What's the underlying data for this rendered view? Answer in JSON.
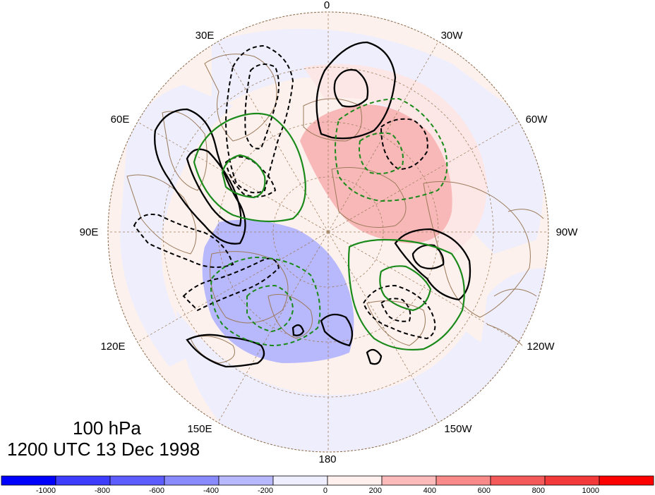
{
  "title": {
    "level": "100 hPa",
    "time": "1200 UTC 13 Dec 1998"
  },
  "longitude_labels": [
    {
      "key": "0",
      "text": "0"
    },
    {
      "key": "30W",
      "text": "30W"
    },
    {
      "key": "60W",
      "text": "60W"
    },
    {
      "key": "90W",
      "text": "90W"
    },
    {
      "key": "120W",
      "text": "120W"
    },
    {
      "key": "150W",
      "text": "150W"
    },
    {
      "key": "180",
      "text": "180"
    },
    {
      "key": "150E",
      "text": "150E"
    },
    {
      "key": "120E",
      "text": "120E"
    },
    {
      "key": "90E",
      "text": "90E"
    },
    {
      "key": "60E",
      "text": "60E"
    },
    {
      "key": "30E",
      "text": "30E"
    }
  ],
  "colorbar": {
    "tick_labels": [
      "-1000",
      "-800",
      "-600",
      "-400",
      "-200",
      "0",
      "200",
      "400",
      "600",
      "800",
      "1000"
    ],
    "colors": [
      "#0000ff",
      "#3d3dff",
      "#5c5cff",
      "#8a8aff",
      "#b8b8ff",
      "#eeeeff",
      "#fff0ee",
      "#fbbbbb",
      "#f88a8a",
      "#f55a5a",
      "#f23a3a",
      "#ff0000"
    ]
  },
  "legend_colors": {
    "black_contour": "#000000",
    "green_contour": "#1a8a1a",
    "coastline": "#9c7a5a",
    "graticule": "#a08060"
  }
}
